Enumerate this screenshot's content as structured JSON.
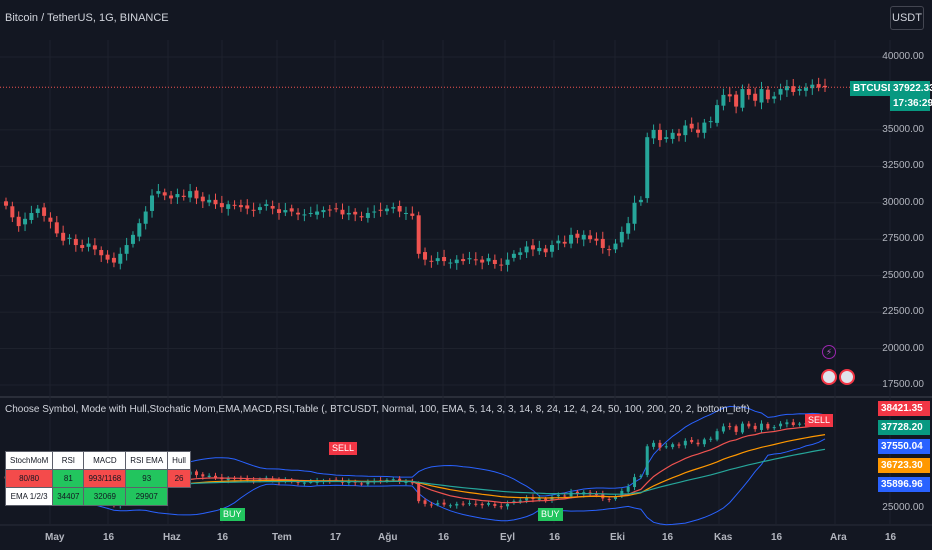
{
  "header": {
    "symbol_line": "Bitcoin / TetherUS, 1G, BINANCE",
    "currency_button": "USDT"
  },
  "price_axis": {
    "ticks": [
      "40000.00",
      "35000.00",
      "32500.00",
      "30000.00",
      "27500.00",
      "25000.00",
      "22500.00",
      "20000.00",
      "17500.00"
    ],
    "last_price_label": "BTCUSDT",
    "last_price": "37922.33",
    "countdown": "17:36:29"
  },
  "indicator": {
    "title": "Choose Symbol, Mode with Hull,Stochatic Mom,EMA,MACD,RSI,Table (, BTCUSDT, Normal, 100, EMA, 5, 14, 3, 3, 14, 8, 24, 12, 4, 24, 50, 100, 200, 20, 2, bottom_left)",
    "axis_tags": [
      {
        "value": "38421.35",
        "color": "#f23645"
      },
      {
        "value": "37728.20",
        "color": "#089981"
      },
      {
        "value": "37550.04",
        "color": "#2962ff"
      },
      {
        "value": "36723.30",
        "color": "#ff9800"
      },
      {
        "value": "35896.96",
        "color": "#2962ff"
      }
    ],
    "axis_tick": "25000.00",
    "signals": {
      "sell_label": "SELL",
      "buy_label": "BUY"
    },
    "table": {
      "header": [
        "StochMoM",
        "RSI",
        "MACD",
        "RSI EMA",
        "Hull"
      ],
      "row1": [
        "80/80",
        "81",
        "993/1168",
        "93",
        "26"
      ],
      "row2": [
        "EMA 1/2/3",
        "34407",
        "32069",
        "29907"
      ]
    },
    "event_icons": {
      "flash": "⚡"
    }
  },
  "time_axis": {
    "labels": [
      "May",
      "16",
      "Haz",
      "16",
      "Tem",
      "17",
      "Ağu",
      "16",
      "Eyl",
      "16",
      "Eki",
      "16",
      "Kas",
      "16",
      "Ara",
      "16"
    ]
  },
  "colors": {
    "up": "#26a69a",
    "down": "#ef5350",
    "background": "#131722",
    "grid": "#1e222d"
  },
  "chart_data": {
    "type": "candlestick",
    "approx_daily_closes": [
      29800,
      29000,
      28400,
      28900,
      29300,
      29600,
      29100,
      28700,
      27900,
      27400,
      27600,
      27100,
      26900,
      27200,
      26800,
      26400,
      26100,
      25900,
      26500,
      27100,
      27800,
      28600,
      29400,
      30500,
      30800,
      30500,
      30300,
      30600,
      30400,
      30800,
      30300,
      30100,
      30200,
      29900,
      29700,
      29900,
      29800,
      29700,
      29600,
      29500,
      29700,
      29900,
      29600,
      29300,
      29500,
      29400,
      29200,
      29200,
      29300,
      29400,
      29500,
      29500,
      29600,
      29200,
      29300,
      29200,
      29000,
      29300,
      29400,
      29500,
      29600,
      29700,
      29400,
      29300,
      29100,
      26500,
      26100,
      26000,
      26200,
      26000,
      25900,
      26100,
      26000,
      26200,
      26100,
      25900,
      26200,
      25800,
      25700,
      26100,
      26500,
      26600,
      27000,
      26800,
      26900,
      26600,
      27100,
      27400,
      27200,
      27800,
      27600,
      27800,
      27500,
      27400,
      26900,
      26800,
      27200,
      28000,
      28600,
      30000,
      30200,
      34500,
      35000,
      34300,
      34500,
      34800,
      34600,
      35300,
      35100,
      34800,
      35500,
      35600,
      36700,
      37400,
      37300,
      36600,
      37800,
      37400,
      37000,
      37800,
      37100,
      37300,
      37800,
      38000,
      37600,
      37800,
      37900,
      38100,
      37900,
      37922
    ],
    "last_price": 37922.33
  }
}
